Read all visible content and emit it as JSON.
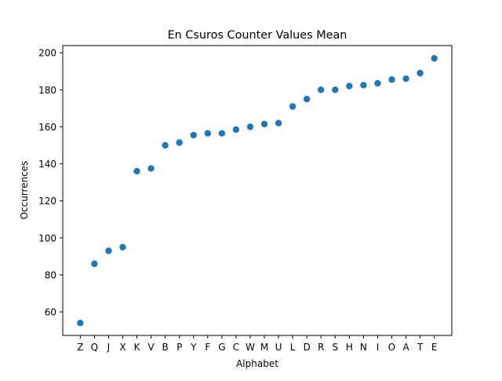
{
  "chart_data": {
    "type": "scatter",
    "title": "En Csuros Counter Values Mean",
    "xlabel": "Alphabet",
    "ylabel": "Occurrences",
    "categories": [
      "Z",
      "Q",
      "J",
      "X",
      "K",
      "V",
      "B",
      "P",
      "Y",
      "F",
      "G",
      "C",
      "W",
      "M",
      "U",
      "L",
      "D",
      "R",
      "S",
      "H",
      "N",
      "I",
      "O",
      "A",
      "T",
      "E"
    ],
    "values": [
      54,
      86,
      93,
      95,
      136,
      137.5,
      150,
      151.5,
      155.5,
      156.5,
      156.5,
      158.5,
      160,
      161.5,
      162,
      171,
      175,
      180,
      180,
      182,
      182.5,
      183.5,
      185.5,
      186,
      189,
      197
    ],
    "ylim": [
      47.3,
      203.9
    ],
    "yticks": [
      60,
      80,
      100,
      120,
      140,
      160,
      180,
      200
    ],
    "grid": false,
    "marker_color": "#1f77b4"
  }
}
